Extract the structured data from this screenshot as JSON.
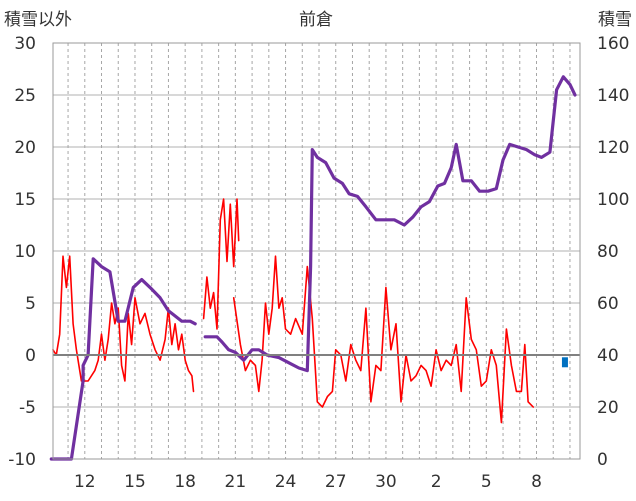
{
  "chart_data": {
    "type": "line",
    "title": "前倉",
    "ylabel_left": "積雪以外",
    "ylabel_right": "積雪",
    "x_ticks": [
      "12",
      "15",
      "18",
      "21",
      "24",
      "27",
      "30",
      "2",
      "5",
      "8"
    ],
    "y_left_ticks": [
      "30",
      "25",
      "20",
      "15",
      "10",
      "5",
      "0",
      "-5",
      "-10"
    ],
    "y_right_ticks": [
      "160",
      "140",
      "120",
      "100",
      "80",
      "60",
      "40",
      "20",
      "0"
    ],
    "ylim_left": [
      -10,
      30
    ],
    "ylim_right": [
      0,
      160
    ],
    "grid": true,
    "colors": {
      "temperature": "#ff0000",
      "snow_depth": "#7030a0",
      "marker": "#0070c0"
    },
    "series": [
      {
        "axis": "left",
        "values": [
          [
            10.1,
            0.5
          ],
          [
            10.3,
            0.0
          ],
          [
            10.5,
            2.0
          ],
          [
            10.7,
            9.5
          ],
          [
            10.9,
            6.5
          ],
          [
            11.1,
            9.5
          ],
          [
            11.3,
            3.0
          ],
          [
            11.5,
            0.5
          ],
          [
            11.8,
            -2.5
          ],
          [
            12.2,
            -2.5
          ],
          [
            12.6,
            -1.5
          ],
          [
            12.8,
            -0.5
          ],
          [
            13.0,
            2.0
          ],
          [
            13.2,
            -0.5
          ],
          [
            13.4,
            1.5
          ],
          [
            13.6,
            5.0
          ],
          [
            13.8,
            3.0
          ],
          [
            14.0,
            4.5
          ],
          [
            14.2,
            -1.0
          ],
          [
            14.4,
            -2.5
          ],
          [
            14.6,
            4.0
          ],
          [
            14.8,
            1.0
          ],
          [
            15.0,
            5.5
          ],
          [
            15.3,
            3.0
          ],
          [
            15.6,
            4.0
          ],
          [
            15.9,
            2.0
          ],
          [
            16.2,
            0.5
          ],
          [
            16.5,
            -0.5
          ],
          [
            16.8,
            1.5
          ],
          [
            17.0,
            4.5
          ],
          [
            17.2,
            1.0
          ],
          [
            17.4,
            3.0
          ],
          [
            17.6,
            0.5
          ],
          [
            17.8,
            2.0
          ],
          [
            18.0,
            -0.5
          ],
          [
            18.2,
            -1.5
          ],
          [
            18.4,
            -2.0
          ],
          [
            18.5,
            -3.5
          ]
        ]
      },
      {
        "axis": "left",
        "values": [
          [
            19.1,
            3.5
          ],
          [
            19.3,
            7.5
          ],
          [
            19.5,
            4.5
          ],
          [
            19.7,
            6.0
          ],
          [
            19.9,
            2.5
          ],
          [
            20.1,
            13.0
          ],
          [
            20.3,
            15.0
          ],
          [
            20.5,
            9.0
          ],
          [
            20.7,
            14.5
          ],
          [
            20.9,
            8.5
          ],
          [
            21.1,
            15.0
          ],
          [
            21.2,
            11.0
          ]
        ]
      },
      {
        "axis": "left",
        "values": [
          [
            20.9,
            5.5
          ],
          [
            21.3,
            1.0
          ],
          [
            21.6,
            -1.5
          ],
          [
            21.9,
            -0.5
          ],
          [
            22.2,
            -1.0
          ],
          [
            22.4,
            -3.5
          ],
          [
            22.6,
            -0.5
          ],
          [
            22.8,
            5.0
          ],
          [
            23.0,
            2.0
          ],
          [
            23.2,
            4.5
          ],
          [
            23.4,
            9.5
          ],
          [
            23.6,
            4.5
          ],
          [
            23.8,
            5.5
          ],
          [
            24.0,
            2.5
          ],
          [
            24.3,
            2.0
          ],
          [
            24.6,
            3.5
          ],
          [
            25.0,
            2.0
          ],
          [
            25.3,
            8.5
          ],
          [
            25.6,
            3.5
          ],
          [
            25.9,
            -4.5
          ],
          [
            26.2,
            -5.0
          ],
          [
            26.5,
            -4.0
          ],
          [
            26.8,
            -3.5
          ],
          [
            27.0,
            0.5
          ],
          [
            27.3,
            0.0
          ],
          [
            27.6,
            -2.5
          ],
          [
            27.9,
            1.0
          ],
          [
            28.2,
            -0.5
          ],
          [
            28.5,
            -1.5
          ],
          [
            28.8,
            4.5
          ],
          [
            29.1,
            -4.5
          ],
          [
            29.4,
            -1.0
          ],
          [
            29.7,
            -1.5
          ],
          [
            30.0,
            6.5
          ],
          [
            30.3,
            0.5
          ],
          [
            30.6,
            3.0
          ],
          [
            30.9,
            -4.5
          ],
          [
            31.2,
            0.0
          ],
          [
            31.5,
            -2.5
          ],
          [
            31.8,
            -2.0
          ],
          [
            32.1,
            -1.0
          ],
          [
            32.4,
            -1.5
          ],
          [
            32.7,
            -3.0
          ],
          [
            33.0,
            0.5
          ],
          [
            33.3,
            -1.5
          ],
          [
            33.6,
            -0.5
          ],
          [
            33.9,
            -1.0
          ],
          [
            34.2,
            1.0
          ],
          [
            34.5,
            -3.5
          ],
          [
            34.8,
            5.5
          ],
          [
            35.1,
            1.5
          ],
          [
            35.4,
            0.5
          ],
          [
            35.7,
            -3.0
          ],
          [
            36.0,
            -2.5
          ],
          [
            36.3,
            0.5
          ],
          [
            36.6,
            -1.0
          ],
          [
            36.9,
            -6.5
          ],
          [
            37.2,
            2.5
          ],
          [
            37.5,
            -1.0
          ],
          [
            37.8,
            -3.5
          ],
          [
            38.1,
            -3.5
          ],
          [
            38.3,
            1.0
          ],
          [
            38.5,
            -4.5
          ],
          [
            38.8,
            -5.0
          ]
        ]
      },
      {
        "axis": "right",
        "values": [
          [
            10.0,
            0
          ],
          [
            11.2,
            0
          ],
          [
            11.9,
            30
          ],
          [
            11.9,
            36
          ],
          [
            12.2,
            40
          ],
          [
            12.5,
            77
          ],
          [
            13.0,
            74
          ],
          [
            13.5,
            72
          ],
          [
            14.0,
            53
          ],
          [
            14.4,
            53
          ],
          [
            14.9,
            66
          ],
          [
            15.4,
            69
          ],
          [
            15.9,
            66
          ],
          [
            16.5,
            62
          ],
          [
            17.0,
            57
          ],
          [
            17.2,
            56
          ],
          [
            17.8,
            53
          ],
          [
            18.3,
            53
          ],
          [
            18.6,
            52
          ]
        ]
      },
      {
        "axis": "right",
        "values": [
          [
            19.2,
            47
          ],
          [
            19.9,
            47
          ],
          [
            20.2,
            45
          ],
          [
            20.6,
            42
          ],
          [
            21.0,
            41
          ],
          [
            21.5,
            38
          ],
          [
            22.0,
            42
          ],
          [
            22.4,
            42
          ],
          [
            22.9,
            40
          ],
          [
            23.6,
            39
          ],
          [
            24.2,
            37
          ],
          [
            24.8,
            35
          ],
          [
            25.3,
            34
          ],
          [
            25.5,
            74
          ],
          [
            25.6,
            119
          ],
          [
            25.9,
            116
          ],
          [
            26.4,
            114
          ],
          [
            26.9,
            108
          ],
          [
            27.4,
            106
          ],
          [
            27.8,
            102
          ],
          [
            28.3,
            101
          ],
          [
            28.8,
            97
          ],
          [
            29.4,
            92
          ],
          [
            30.0,
            92
          ],
          [
            30.5,
            92
          ],
          [
            31.1,
            90
          ],
          [
            31.6,
            93
          ],
          [
            32.1,
            97
          ],
          [
            32.6,
            99
          ],
          [
            33.1,
            105
          ],
          [
            33.5,
            106
          ],
          [
            33.9,
            112
          ],
          [
            34.2,
            121
          ],
          [
            34.6,
            107
          ],
          [
            35.1,
            107
          ],
          [
            35.6,
            103
          ],
          [
            36.1,
            103
          ],
          [
            36.6,
            104
          ],
          [
            37.0,
            115
          ],
          [
            37.4,
            121
          ],
          [
            37.9,
            120
          ],
          [
            38.4,
            119
          ],
          [
            38.9,
            117
          ],
          [
            39.3,
            116
          ],
          [
            39.8,
            118
          ],
          [
            40.2,
            142
          ],
          [
            40.6,
            147
          ],
          [
            41.0,
            144
          ],
          [
            41.3,
            140
          ]
        ]
      }
    ],
    "marker": {
      "axis": "left",
      "x": 40.7,
      "y": -0.7
    }
  }
}
